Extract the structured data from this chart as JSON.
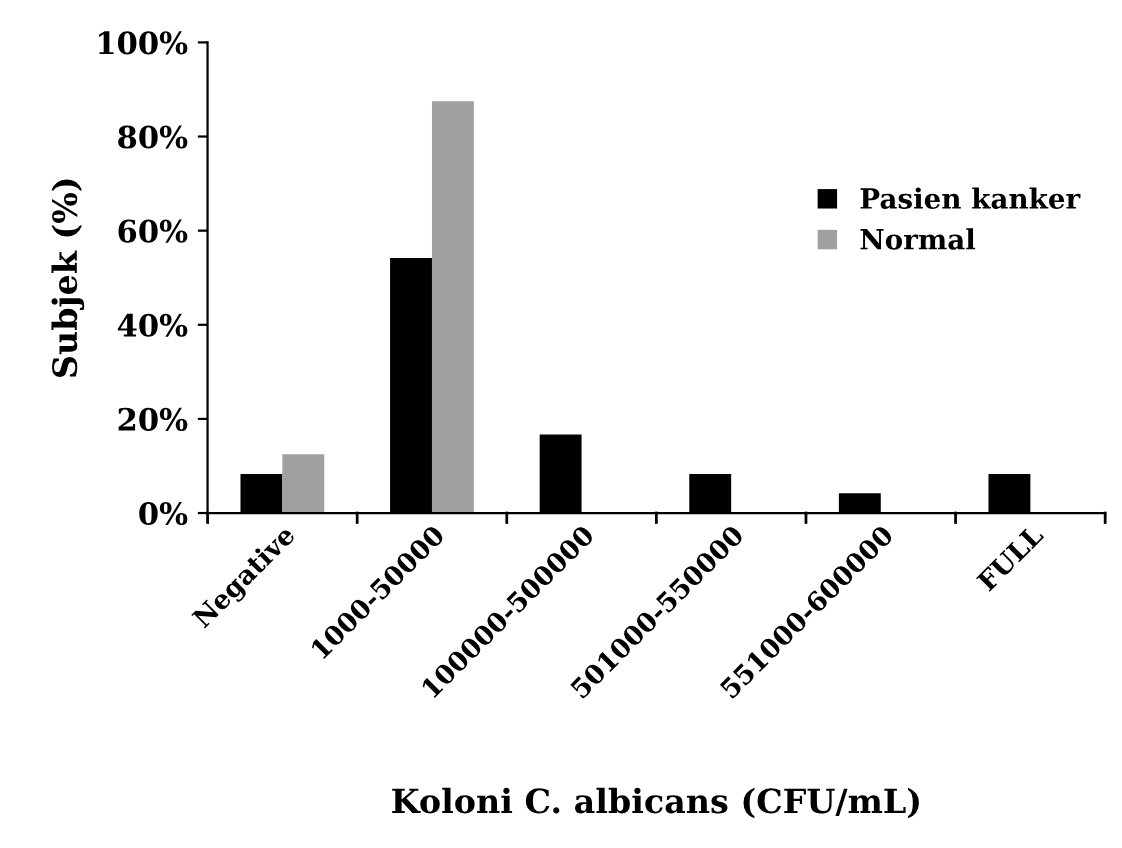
{
  "chart_data": {
    "type": "bar",
    "xlabel": "Koloni C. albicans (CFU/mL)",
    "ylabel": "Subjek (%)",
    "categories": [
      "Negative",
      "1000-50000",
      "100000-500000",
      "501000-550000",
      "551000-600000",
      "FULL"
    ],
    "series": [
      {
        "name": "Pasien kanker",
        "color": "#000000",
        "values": [
          8.3,
          54.2,
          16.7,
          8.3,
          4.2,
          8.3
        ]
      },
      {
        "name": "Normal",
        "color": "#a0a0a0",
        "values": [
          12.5,
          87.5,
          0,
          0,
          0,
          0
        ]
      }
    ],
    "ylim": [
      0,
      100
    ],
    "yticks": [
      {
        "value": 0,
        "label": "0%"
      },
      {
        "value": 20,
        "label": "20%"
      },
      {
        "value": 40,
        "label": "40%"
      },
      {
        "value": 60,
        "label": "60%"
      },
      {
        "value": 80,
        "label": "80%"
      },
      {
        "value": 100,
        "label": "100%"
      }
    ],
    "grid": false,
    "legend": "right"
  }
}
